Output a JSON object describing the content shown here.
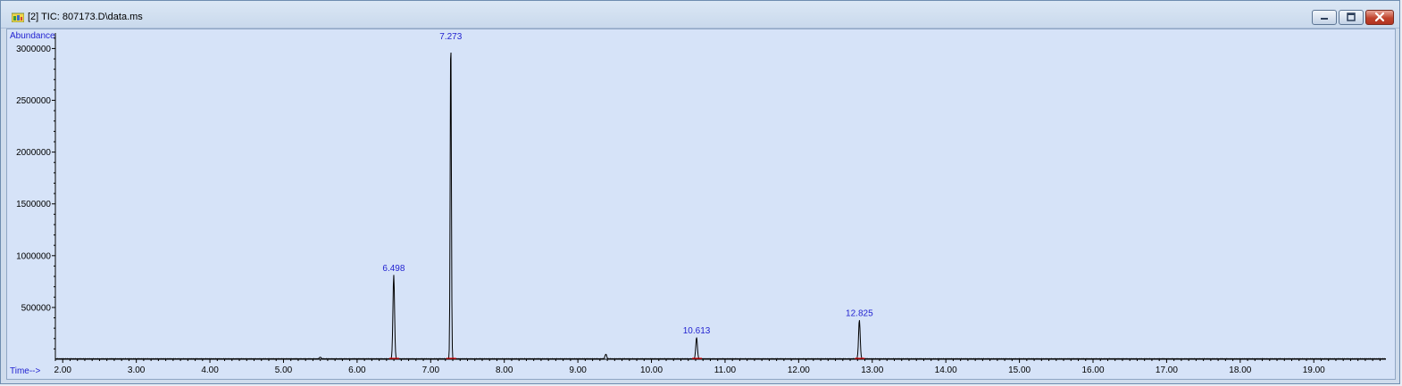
{
  "window": {
    "title": "[2] TIC: 807173.D\\data.ms",
    "icon": "chromatogram-app-icon",
    "buttons": [
      "minimize",
      "maximize",
      "close"
    ],
    "close_color": "#c0432d"
  },
  "colors": {
    "plot_background": "#d6e3f8",
    "trace": "#000000",
    "label_blue": "#1f1fd0",
    "baseline_marker": "#e00000"
  },
  "chart_data": {
    "type": "line",
    "title": "",
    "ylabel": "Abundance",
    "xlabel": "Time-->",
    "xlim": [
      1.9,
      19.98
    ],
    "ylim": [
      0,
      3150000
    ],
    "x_ticks": [
      {
        "value": 2,
        "label": "2.00"
      },
      {
        "value": 3,
        "label": "3.00"
      },
      {
        "value": 4,
        "label": "4.00"
      },
      {
        "value": 5,
        "label": "5.00"
      },
      {
        "value": 6,
        "label": "6.00"
      },
      {
        "value": 7,
        "label": "7.00"
      },
      {
        "value": 8,
        "label": "8.00"
      },
      {
        "value": 9,
        "label": "9.00"
      },
      {
        "value": 10,
        "label": "10.00"
      },
      {
        "value": 11,
        "label": "11.00"
      },
      {
        "value": 12,
        "label": "12.00"
      },
      {
        "value": 13,
        "label": "13.00"
      },
      {
        "value": 14,
        "label": "14.00"
      },
      {
        "value": 15,
        "label": "15.00"
      },
      {
        "value": 16,
        "label": "16.00"
      },
      {
        "value": 17,
        "label": "17.00"
      },
      {
        "value": 18,
        "label": "18.00"
      },
      {
        "value": 19,
        "label": "19.00"
      }
    ],
    "y_ticks": [
      {
        "value": 500000,
        "label": "500000"
      },
      {
        "value": 1000000,
        "label": "1000000"
      },
      {
        "value": 1500000,
        "label": "1500000"
      },
      {
        "value": 2000000,
        "label": "2000000"
      },
      {
        "value": 2500000,
        "label": "2500000"
      },
      {
        "value": 3000000,
        "label": "3000000"
      }
    ],
    "grid": false,
    "peaks": [
      {
        "rt": 6.498,
        "label": "6.498",
        "height": 810000
      },
      {
        "rt": 7.273,
        "label": "7.273",
        "height": 3140000
      },
      {
        "rt": 10.613,
        "label": "10.613",
        "height": 205000
      },
      {
        "rt": 12.825,
        "label": "12.825",
        "height": 375000
      }
    ],
    "minor_peaks": [
      {
        "rt": 5.5,
        "height": 15000
      },
      {
        "rt": 9.38,
        "height": 45000
      }
    ],
    "baseline": 5000
  }
}
